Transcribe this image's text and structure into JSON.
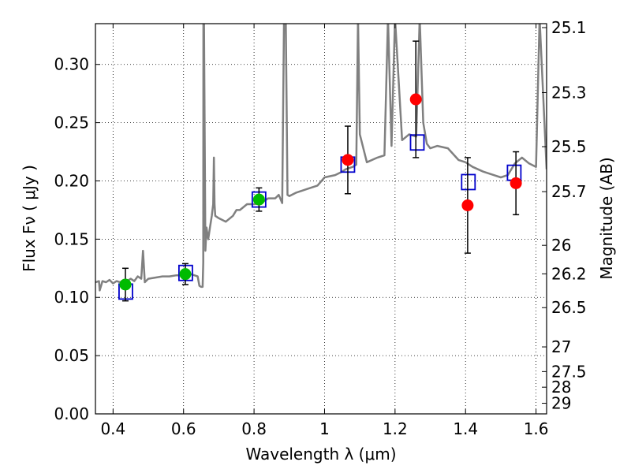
{
  "chart_data": {
    "type": "scatter",
    "xlabel": "Wavelength  λ (μm)",
    "ylabel": "Flux  Fν ( μJy )",
    "ylabel_right": "Magnitude (AB)",
    "xlim": [
      0.35,
      1.63
    ],
    "ylim": [
      0.0,
      0.335
    ],
    "grid": true,
    "x_ticks": [
      0.4,
      0.6,
      0.8,
      1.0,
      1.2,
      1.4,
      1.6
    ],
    "x_tick_labels": [
      "0.4",
      "0.6",
      "0.8",
      "1",
      "1.2",
      "1.4",
      "1.6"
    ],
    "y_ticks": [
      0.0,
      0.05,
      0.1,
      0.15,
      0.2,
      0.25,
      0.3
    ],
    "y_tick_labels": [
      "0.00",
      "0.05",
      "0.10",
      "0.15",
      "0.20",
      "0.25",
      "0.30"
    ],
    "right_ticks": [
      {
        "label": "25.1",
        "flux": 0.3316
      },
      {
        "label": "25.3",
        "flux": 0.2758
      },
      {
        "label": "25.5",
        "flux": 0.2294
      },
      {
        "label": "25.7",
        "flux": 0.1908
      },
      {
        "label": "26",
        "flux": 0.1447
      },
      {
        "label": "26.2",
        "flux": 0.1202
      },
      {
        "label": "26.5",
        "flux": 0.0912
      },
      {
        "label": "27",
        "flux": 0.0575
      },
      {
        "label": "27.5",
        "flux": 0.0363
      },
      {
        "label": "28",
        "flux": 0.0229
      },
      {
        "label": "29",
        "flux": 0.0091
      }
    ],
    "series": [
      {
        "name": "green_observed",
        "color": "#00bb00",
        "points": [
          {
            "x": 0.435,
            "y": 0.111,
            "err": 0.014
          },
          {
            "x": 0.605,
            "y": 0.12,
            "err": 0.009
          },
          {
            "x": 0.814,
            "y": 0.184,
            "err": 0.01
          }
        ]
      },
      {
        "name": "red_observed",
        "color": "#ff0000",
        "points": [
          {
            "x": 1.066,
            "y": 0.218,
            "err": 0.029
          },
          {
            "x": 1.259,
            "y": 0.27,
            "err": 0.05
          },
          {
            "x": 1.406,
            "y": 0.179,
            "err": 0.041
          },
          {
            "x": 1.543,
            "y": 0.198,
            "err": 0.027
          }
        ]
      },
      {
        "name": "model_photometry",
        "color": "#0000cc",
        "points": [
          {
            "x": 0.436,
            "y": 0.105
          },
          {
            "x": 0.606,
            "y": 0.121
          },
          {
            "x": 0.814,
            "y": 0.184
          },
          {
            "x": 1.066,
            "y": 0.214
          },
          {
            "x": 1.263,
            "y": 0.233
          },
          {
            "x": 1.408,
            "y": 0.199
          },
          {
            "x": 1.538,
            "y": 0.207
          }
        ]
      }
    ],
    "spectrum": {
      "name": "model_spectrum",
      "color": "#808080",
      "x": [
        0.35,
        0.36,
        0.362,
        0.37,
        0.38,
        0.39,
        0.4,
        0.41,
        0.42,
        0.43,
        0.44,
        0.45,
        0.46,
        0.47,
        0.48,
        0.485,
        0.49,
        0.5,
        0.52,
        0.54,
        0.56,
        0.58,
        0.6,
        0.62,
        0.64,
        0.645,
        0.65,
        0.654,
        0.656,
        0.6563,
        0.658,
        0.662,
        0.665,
        0.67,
        0.675,
        0.68,
        0.684,
        0.686,
        0.688,
        0.69,
        0.7,
        0.72,
        0.74,
        0.75,
        0.76,
        0.78,
        0.8,
        0.82,
        0.84,
        0.86,
        0.87,
        0.88,
        0.885,
        0.89,
        0.895,
        0.9,
        0.92,
        0.95,
        0.98,
        1.0,
        1.03,
        1.05,
        1.06,
        1.08,
        1.09,
        1.095,
        1.1,
        1.12,
        1.15,
        1.17,
        1.18,
        1.19,
        1.2,
        1.22,
        1.24,
        1.26,
        1.27,
        1.28,
        1.29,
        1.3,
        1.32,
        1.35,
        1.38,
        1.4,
        1.42,
        1.45,
        1.48,
        1.5,
        1.52,
        1.54,
        1.56,
        1.58,
        1.6,
        1.61,
        1.63
      ],
      "y": [
        0.113,
        0.114,
        0.106,
        0.114,
        0.113,
        0.115,
        0.112,
        0.114,
        0.113,
        0.115,
        0.114,
        0.116,
        0.114,
        0.118,
        0.116,
        0.14,
        0.113,
        0.116,
        0.117,
        0.118,
        0.118,
        0.119,
        0.119,
        0.12,
        0.118,
        0.11,
        0.109,
        0.109,
        0.13,
        0.34,
        0.34,
        0.14,
        0.16,
        0.15,
        0.16,
        0.17,
        0.18,
        0.22,
        0.18,
        0.17,
        0.168,
        0.165,
        0.17,
        0.175,
        0.175,
        0.18,
        0.18,
        0.181,
        0.185,
        0.185,
        0.188,
        0.181,
        0.34,
        0.34,
        0.188,
        0.187,
        0.19,
        0.193,
        0.196,
        0.203,
        0.205,
        0.208,
        0.21,
        0.212,
        0.214,
        0.34,
        0.24,
        0.216,
        0.22,
        0.222,
        0.34,
        0.23,
        0.34,
        0.235,
        0.24,
        0.238,
        0.34,
        0.25,
        0.232,
        0.228,
        0.23,
        0.228,
        0.218,
        0.216,
        0.212,
        0.208,
        0.205,
        0.203,
        0.205,
        0.215,
        0.22,
        0.215,
        0.212,
        0.34,
        0.21
      ]
    }
  }
}
